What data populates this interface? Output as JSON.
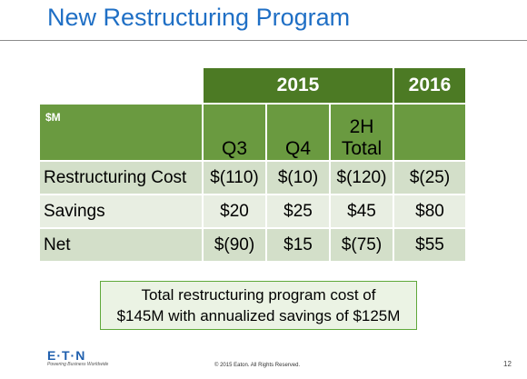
{
  "slide": {
    "title": "New Restructuring Program",
    "page_number": "12"
  },
  "table": {
    "unit_label": "$M",
    "year_headers": [
      "2015",
      "2016"
    ],
    "period_headers": [
      "Q3",
      "Q4",
      "2H\nTotal",
      ""
    ],
    "rows": [
      {
        "label": "Restructuring Cost",
        "values": [
          "$(110)",
          "$(10)",
          "$(120)",
          "$(25)"
        ]
      },
      {
        "label": "Savings",
        "values": [
          "$20",
          "$25",
          "$45",
          "$80"
        ]
      },
      {
        "label": "Net",
        "values": [
          "$(90)",
          "$15",
          "$(75)",
          "$55"
        ]
      }
    ]
  },
  "callout": {
    "line1": "Total restructuring program cost of",
    "line2": "$145M with annualized savings of $125M"
  },
  "footer": {
    "logo_text": "E·T·N",
    "logo_tagline": "Powering Business Worldwide",
    "copyright": "© 2015 Eaton. All Rights Reserved."
  },
  "colors": {
    "title_blue": "#1f6fc5",
    "year_header_green": "#4c7a24",
    "period_header_green": "#6a9a40",
    "row_light_green_a": "#d3dfc9",
    "row_light_green_b": "#e8eee2",
    "callout_border": "#5fa83a",
    "callout_fill": "#ebf3e4"
  }
}
